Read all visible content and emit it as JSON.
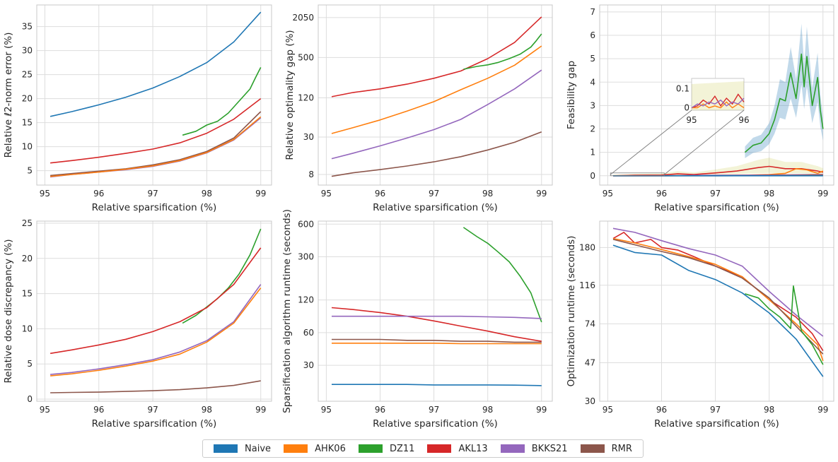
{
  "colors": {
    "Naive": "#1f77b4",
    "AHK06": "#ff7f0e",
    "DZ11": "#2ca02c",
    "AKL13": "#d62728",
    "BKKS21": "#9467bd",
    "RMR": "#8c564b"
  },
  "legend": [
    "Naive",
    "AHK06",
    "DZ11",
    "AKL13",
    "BKKS21",
    "RMR"
  ],
  "chart_data": [
    {
      "type": "line",
      "xlabel": "Relative sparsification (%)",
      "ylabel": "Relative ℓ2-norm error (%)",
      "xlim": [
        94.85,
        99.2
      ],
      "ylim": [
        2,
        39.5
      ],
      "yscale": "linear",
      "xticks": [
        95,
        96,
        97,
        98,
        99
      ],
      "yticks": [
        5,
        10,
        15,
        20,
        25,
        30,
        35
      ],
      "grid": true,
      "series": [
        {
          "name": "Naive",
          "x": [
            95.1,
            95.5,
            96,
            96.5,
            97,
            97.5,
            98,
            98.5,
            99
          ],
          "y": [
            16.3,
            17.3,
            18.7,
            20.3,
            22.2,
            24.6,
            27.5,
            31.8,
            38.0
          ]
        },
        {
          "name": "DZ11",
          "x": [
            97.55,
            97.8,
            98,
            98.2,
            98.4,
            98.6,
            98.8,
            98.9,
            99
          ],
          "y": [
            12.4,
            13.2,
            14.5,
            15.3,
            17.0,
            19.5,
            22.0,
            24.3,
            26.5
          ]
        },
        {
          "name": "AKL13",
          "x": [
            95.1,
            95.5,
            96,
            96.5,
            97,
            97.5,
            98,
            98.5,
            99
          ],
          "y": [
            6.6,
            7.1,
            7.8,
            8.6,
            9.5,
            10.8,
            12.8,
            15.7,
            20.0
          ]
        },
        {
          "name": "RMR",
          "x": [
            95.1,
            95.5,
            96,
            96.5,
            97,
            97.5,
            98,
            98.5,
            99
          ],
          "y": [
            4.0,
            4.4,
            4.9,
            5.4,
            6.2,
            7.3,
            9.0,
            11.8,
            17.3
          ]
        },
        {
          "name": "BKKS21",
          "x": [
            95.1,
            95.5,
            96,
            96.5,
            97,
            97.5,
            98,
            98.5,
            99
          ],
          "y": [
            3.7,
            4.2,
            4.7,
            5.2,
            5.9,
            7.0,
            8.7,
            11.4,
            16.0
          ]
        },
        {
          "name": "AHK06",
          "x": [
            95.1,
            95.5,
            96,
            96.5,
            97,
            97.5,
            98,
            98.5,
            99
          ],
          "y": [
            3.8,
            4.2,
            4.7,
            5.3,
            6.0,
            7.1,
            8.8,
            11.5,
            16.2
          ]
        }
      ]
    },
    {
      "type": "line",
      "xlabel": "Relative sparsification (%)",
      "ylabel": "Relative optimality gap (%)",
      "xlim": [
        94.85,
        99.2
      ],
      "ylim": [
        5.5,
        3200
      ],
      "yscale": "log",
      "xticks": [
        95,
        96,
        97,
        98,
        99
      ],
      "yticks": [
        8,
        30,
        120,
        500,
        2050
      ],
      "grid": true,
      "series": [
        {
          "name": "AKL13",
          "x": [
            95.1,
            95.5,
            96,
            96.5,
            97,
            97.5,
            98,
            98.5,
            99
          ],
          "y": [
            125,
            145,
            165,
            195,
            240,
            310,
            480,
            850,
            2100
          ]
        },
        {
          "name": "DZ11",
          "x": [
            97.55,
            97.8,
            98,
            98.2,
            98.4,
            98.6,
            98.8,
            98.9,
            99
          ],
          "y": [
            330,
            365,
            385,
            420,
            480,
            560,
            720,
            900,
            1150
          ]
        },
        {
          "name": "AHK06",
          "x": [
            95.1,
            95.5,
            96,
            96.5,
            97,
            97.5,
            98,
            98.5,
            99
          ],
          "y": [
            34,
            42,
            55,
            75,
            105,
            160,
            240,
            380,
            750
          ]
        },
        {
          "name": "BKKS21",
          "x": [
            95.1,
            95.5,
            96,
            96.5,
            97,
            97.5,
            98,
            98.5,
            99
          ],
          "y": [
            14,
            17,
            22,
            29,
            39,
            56,
            95,
            165,
            320
          ]
        },
        {
          "name": "RMR",
          "x": [
            95.1,
            95.5,
            96,
            96.5,
            97,
            97.5,
            98,
            98.5,
            99
          ],
          "y": [
            7.5,
            8.5,
            9.5,
            10.8,
            12.5,
            15,
            19,
            25,
            36
          ]
        }
      ]
    },
    {
      "type": "line",
      "xlabel": "Relative sparsification (%)",
      "ylabel": "Feasibility gap",
      "xlim": [
        94.85,
        99.2
      ],
      "ylim": [
        -0.4,
        7.3
      ],
      "yscale": "linear",
      "xticks": [
        95,
        96,
        97,
        98,
        99
      ],
      "yticks": [
        0,
        1,
        2,
        3,
        4,
        5,
        6,
        7
      ],
      "grid": true,
      "inset": {
        "xticks": [
          95,
          96
        ],
        "yticks": [
          0.0,
          0.1
        ]
      },
      "series": [
        {
          "name": "DZ11",
          "x": [
            97.55,
            97.7,
            97.85,
            98,
            98.1,
            98.2,
            98.3,
            98.4,
            98.5,
            98.6,
            98.65,
            98.7,
            98.8,
            98.9,
            98.95,
            99
          ],
          "y": [
            1.0,
            1.3,
            1.4,
            1.8,
            2.4,
            3.3,
            3.2,
            4.4,
            3.3,
            5.2,
            3.8,
            5.1,
            3.0,
            4.2,
            2.8,
            2.0
          ]
        },
        {
          "name": "AKL13",
          "x": [
            95.1,
            95.5,
            96,
            96.3,
            96.6,
            97,
            97.4,
            97.8,
            98,
            98.3,
            98.6,
            98.9,
            99
          ],
          "y": [
            0.0,
            0.02,
            0.03,
            0.08,
            0.05,
            0.12,
            0.2,
            0.35,
            0.4,
            0.3,
            0.3,
            0.2,
            0.15
          ]
        },
        {
          "name": "AHK06",
          "x": [
            95.1,
            96,
            97,
            97.5,
            98,
            98.3,
            98.5,
            98.7,
            98.9,
            99
          ],
          "y": [
            0.0,
            0.0,
            0.01,
            0.02,
            0.05,
            0.1,
            0.3,
            0.25,
            0.1,
            0.2
          ]
        },
        {
          "name": "BKKS21",
          "x": [
            95.1,
            96,
            97,
            98,
            99
          ],
          "y": [
            0.0,
            0.0,
            0.02,
            0.03,
            0.05
          ]
        },
        {
          "name": "RMR",
          "x": [
            95.1,
            96,
            97,
            98,
            99
          ],
          "y": [
            0.0,
            0.0,
            0.0,
            0.01,
            0.03
          ]
        },
        {
          "name": "Naive",
          "x": [
            95.1,
            99
          ],
          "y": [
            0.0,
            0.0
          ]
        }
      ]
    },
    {
      "type": "line",
      "xlabel": "Relative sparsification (%)",
      "ylabel": "Relative dose discrepancy (%)",
      "xlim": [
        94.85,
        99.2
      ],
      "ylim": [
        -0.3,
        25.3
      ],
      "yscale": "linear",
      "xticks": [
        95,
        96,
        97,
        98,
        99
      ],
      "yticks": [
        0,
        5,
        10,
        15,
        20,
        25
      ],
      "grid": true,
      "series": [
        {
          "name": "DZ11",
          "x": [
            97.55,
            97.8,
            98,
            98.2,
            98.4,
            98.6,
            98.8,
            99
          ],
          "y": [
            10.8,
            11.9,
            13.1,
            14.3,
            15.8,
            17.8,
            20.5,
            24.2
          ]
        },
        {
          "name": "AKL13",
          "x": [
            95.1,
            95.5,
            96,
            96.5,
            97,
            97.5,
            98,
            98.5,
            99
          ],
          "y": [
            6.5,
            7.0,
            7.7,
            8.5,
            9.6,
            11.0,
            13.0,
            16.3,
            21.5
          ]
        },
        {
          "name": "BKKS21",
          "x": [
            95.1,
            95.5,
            96,
            96.5,
            97,
            97.5,
            98,
            98.5,
            99
          ],
          "y": [
            3.5,
            3.8,
            4.3,
            4.9,
            5.6,
            6.7,
            8.3,
            11.0,
            16.3
          ]
        },
        {
          "name": "AHK06",
          "x": [
            95.1,
            95.5,
            96,
            96.5,
            97,
            97.5,
            98,
            98.5,
            99
          ],
          "y": [
            3.3,
            3.6,
            4.1,
            4.7,
            5.4,
            6.4,
            8.1,
            10.8,
            15.8
          ]
        },
        {
          "name": "RMR",
          "x": [
            95.1,
            95.5,
            96,
            96.5,
            97,
            97.5,
            98,
            98.5,
            99
          ],
          "y": [
            0.9,
            0.95,
            1.0,
            1.1,
            1.2,
            1.35,
            1.6,
            1.95,
            2.6
          ]
        }
      ]
    },
    {
      "type": "line",
      "xlabel": "Relative sparsification (%)",
      "ylabel": "Sparsification algorithm runtime (seconds)",
      "xlim": [
        94.85,
        99.2
      ],
      "ylim": [
        14,
        640
      ],
      "yscale": "log",
      "xticks": [
        95,
        96,
        97,
        98,
        99
      ],
      "yticks": [
        30,
        60,
        120,
        300,
        600
      ],
      "grid": true,
      "series": [
        {
          "name": "DZ11",
          "x": [
            97.55,
            97.8,
            98,
            98.2,
            98.4,
            98.6,
            98.8,
            99
          ],
          "y": [
            560,
            460,
            400,
            330,
            270,
            200,
            140,
            75
          ]
        },
        {
          "name": "AKL13",
          "x": [
            95.1,
            95.5,
            96,
            96.5,
            97,
            97.5,
            98,
            98.5,
            99
          ],
          "y": [
            102,
            98,
            92,
            85,
            77,
            69,
            62,
            55,
            50
          ]
        },
        {
          "name": "BKKS21",
          "x": [
            95.1,
            95.5,
            96,
            96.5,
            97,
            97.5,
            98,
            98.5,
            99
          ],
          "y": [
            85,
            85,
            85,
            85,
            85,
            85,
            84,
            83,
            81
          ]
        },
        {
          "name": "RMR",
          "x": [
            95.1,
            95.5,
            96,
            96.5,
            97,
            97.5,
            98,
            98.5,
            99
          ],
          "y": [
            52,
            52,
            52,
            51,
            51,
            50,
            50,
            49,
            49
          ]
        },
        {
          "name": "AHK06",
          "x": [
            95.1,
            95.5,
            96,
            96.5,
            97,
            97.5,
            98,
            98.5,
            99
          ],
          "y": [
            48,
            48,
            48,
            48,
            48,
            47.5,
            47.5,
            47.5,
            47.5
          ]
        },
        {
          "name": "Naive",
          "x": [
            95.1,
            95.5,
            96,
            96.5,
            97,
            97.5,
            98,
            98.5,
            99
          ],
          "y": [
            20,
            20,
            20,
            20,
            19.8,
            19.8,
            19.8,
            19.7,
            19.5
          ]
        }
      ]
    },
    {
      "type": "line",
      "xlabel": "Relative sparsification (%)",
      "ylabel": "Optimization runtime (seconds)",
      "xlim": [
        94.85,
        99.2
      ],
      "ylim": [
        30,
        245
      ],
      "yscale": "log",
      "xticks": [
        95,
        96,
        97,
        98,
        99
      ],
      "yticks": [
        30,
        47,
        74,
        116,
        180
      ],
      "grid": true,
      "series": [
        {
          "name": "BKKS21",
          "x": [
            95.1,
            95.5,
            96,
            96.5,
            97,
            97.5,
            98,
            98.5,
            99
          ],
          "y": [
            225,
            215,
            195,
            178,
            165,
            145,
            108,
            82,
            64
          ]
        },
        {
          "name": "AKL13",
          "x": [
            95.1,
            95.3,
            95.5,
            95.8,
            96,
            96.3,
            96.6,
            97,
            97.5,
            98,
            98.5,
            98.8,
            99
          ],
          "y": [
            200,
            215,
            190,
            198,
            180,
            175,
            162,
            145,
            128,
            98,
            80,
            66,
            54
          ]
        },
        {
          "name": "AHK06",
          "x": [
            95.1,
            95.5,
            96,
            96.5,
            97,
            97.5,
            98,
            98.5,
            98.9,
            99
          ],
          "y": [
            200,
            190,
            176,
            162,
            148,
            128,
            98,
            74,
            58,
            48
          ]
        },
        {
          "name": "RMR",
          "x": [
            95.1,
            95.5,
            96,
            96.5,
            97,
            97.5,
            98,
            98.5,
            99
          ],
          "y": [
            198,
            186,
            172,
            160,
            145,
            126,
            100,
            72,
            52
          ]
        },
        {
          "name": "DZ11",
          "x": [
            97.55,
            97.8,
            98,
            98.2,
            98.4,
            98.45,
            98.6,
            98.8,
            99
          ],
          "y": [
            105,
            100,
            88,
            80,
            70,
            115,
            68,
            58,
            46
          ]
        },
        {
          "name": "Naive",
          "x": [
            95.1,
            95.5,
            96,
            96.5,
            97,
            97.5,
            98,
            98.5,
            99
          ],
          "y": [
            185,
            170,
            165,
            138,
            124,
            106,
            84,
            62,
            40
          ]
        }
      ]
    }
  ]
}
